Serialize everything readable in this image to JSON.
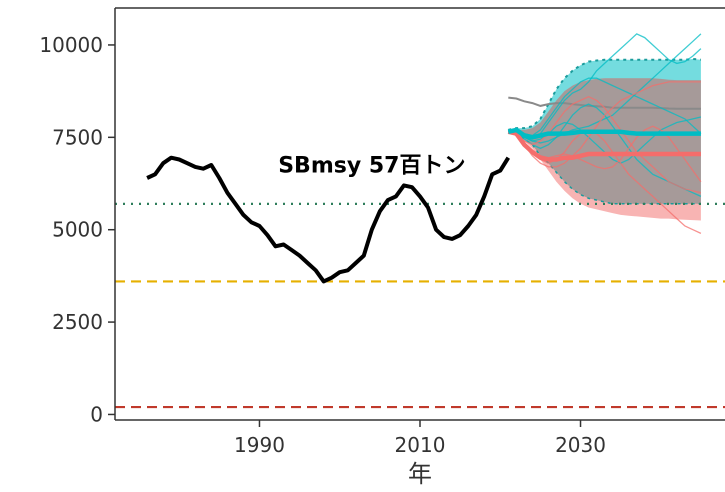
{
  "chart_data": {
    "type": "line",
    "title": "",
    "xlabel": "年",
    "ylabel": "",
    "xlim": [
      1972,
      2048
    ],
    "ylim": [
      -150,
      11000
    ],
    "xticks": [
      1990,
      2010,
      2030
    ],
    "yticks": [
      0,
      2500,
      5000,
      7500,
      10000
    ],
    "grid": false,
    "legend": "none",
    "annotation": {
      "text": "SBmsy 57百トン",
      "x": 2004,
      "y": 6550
    },
    "reference_lines": [
      {
        "value": 5700,
        "style": "dotted",
        "color": "#2e7d5b"
      },
      {
        "value": 3600,
        "style": "dashed",
        "color": "#e6b000"
      },
      {
        "value": 200,
        "style": "dashed",
        "color": "#c0392b"
      }
    ],
    "history": {
      "color": "#000000",
      "x": [
        1976,
        1977,
        1978,
        1979,
        1980,
        1981,
        1982,
        1983,
        1984,
        1985,
        1986,
        1987,
        1988,
        1989,
        1990,
        1991,
        1992,
        1993,
        1994,
        1995,
        1996,
        1997,
        1998,
        1999,
        2000,
        2001,
        2002,
        2003,
        2004,
        2005,
        2006,
        2007,
        2008,
        2009,
        2010,
        2011,
        2012,
        2013,
        2014,
        2015,
        2016,
        2017,
        2018,
        2019,
        2020,
        2021
      ],
      "y": [
        6400,
        6500,
        6800,
        6950,
        6900,
        6800,
        6700,
        6650,
        6750,
        6400,
        6000,
        5700,
        5400,
        5200,
        5100,
        4850,
        4550,
        4600,
        4450,
        4300,
        4100,
        3900,
        3600,
        3700,
        3850,
        3900,
        4100,
        4300,
        5000,
        5500,
        5800,
        5900,
        6200,
        6150,
        5900,
        5600,
        5000,
        4800,
        4750,
        4850,
        5100,
        5400,
        5900,
        6500,
        6600,
        6950
      ]
    },
    "projection_x": [
      2021,
      2022,
      2023,
      2024,
      2025,
      2026,
      2027,
      2028,
      2029,
      2030,
      2031,
      2032,
      2033,
      2034,
      2035,
      2036,
      2037,
      2038,
      2039,
      2040,
      2041,
      2042,
      2043,
      2044,
      2045
    ],
    "series": [
      {
        "color": "#00bcc4",
        "fill": "#45d0d4",
        "lower": [
          7650,
          7600,
          7450,
          7300,
          7000,
          6800,
          6550,
          6300,
          6100,
          5950,
          5850,
          5800,
          5750,
          5700,
          5700,
          5700,
          5700,
          5700,
          5700,
          5700,
          5700,
          5700,
          5700,
          5700,
          5700
        ],
        "upper": [
          7700,
          7750,
          7750,
          7800,
          8000,
          8400,
          8800,
          9100,
          9300,
          9450,
          9550,
          9580,
          9600,
          9600,
          9600,
          9600,
          9600,
          9600,
          9600,
          9600,
          9600,
          9600,
          9600,
          9620,
          9600
        ],
        "median": [
          7650,
          7700,
          7550,
          7500,
          7550,
          7600,
          7600,
          7600,
          7620,
          7650,
          7650,
          7650,
          7650,
          7650,
          7650,
          7620,
          7600,
          7600,
          7600,
          7600,
          7600,
          7600,
          7600,
          7600,
          7600
        ],
        "traces": [
          [
            7650,
            7650,
            7500,
            7450,
            7600,
            7900,
            8200,
            8500,
            8700,
            8800,
            9000,
            9300,
            9500,
            9700,
            9900,
            10100,
            10300,
            10200,
            10000,
            9800,
            9600,
            9500,
            9550,
            9700,
            9900
          ],
          [
            7650,
            7600,
            7450,
            7300,
            7200,
            7300,
            7500,
            7800,
            8100,
            8300,
            8400,
            8300,
            8100,
            7800,
            7500,
            7200,
            6900,
            6700,
            6500,
            6400,
            6300,
            6200,
            6100,
            6000,
            5900
          ],
          [
            7650,
            7650,
            7500,
            7400,
            7450,
            7600,
            7800,
            7900,
            7850,
            7700,
            7500,
            7300,
            7100,
            6900,
            6800,
            6900,
            7100,
            7300,
            7500,
            7700,
            7800,
            7900,
            7950,
            8000,
            8050
          ],
          [
            7650,
            7700,
            7600,
            7550,
            7700,
            8000,
            8300,
            8600,
            8800,
            9000,
            9100,
            9100,
            9000,
            8900,
            8800,
            8700,
            8600,
            8500,
            8400,
            8300,
            8200,
            8100,
            8000,
            7800,
            7600
          ],
          [
            7650,
            7600,
            7500,
            7400,
            7350,
            7400,
            7500,
            7600,
            7700,
            7750,
            7800,
            7900,
            8000,
            8100,
            8300,
            8500,
            8700,
            8900,
            9100,
            9300,
            9500,
            9700,
            9900,
            10100,
            10300
          ]
        ]
      },
      {
        "color": "#f46d6b",
        "fill": "#f59b99",
        "lower": [
          7650,
          7550,
          7400,
          7200,
          6900,
          6600,
          6300,
          6050,
          5850,
          5700,
          5600,
          5550,
          5500,
          5450,
          5400,
          5380,
          5360,
          5340,
          5320,
          5300,
          5300,
          5280,
          5270,
          5260,
          5250
        ],
        "upper": [
          7700,
          7700,
          7700,
          7750,
          7900,
          8200,
          8500,
          8750,
          8900,
          9000,
          9050,
          9080,
          9100,
          9100,
          9100,
          9100,
          9100,
          9100,
          9100,
          9080,
          9060,
          9050,
          9050,
          9050,
          9050
        ],
        "median": [
          7650,
          7600,
          7300,
          7100,
          6950,
          6900,
          6900,
          6950,
          6950,
          7000,
          7050,
          7050,
          7050,
          7050,
          7050,
          7050,
          7050,
          7050,
          7050,
          7050,
          7050,
          7050,
          7050,
          7050,
          7050
        ],
        "traces": [
          [
            7650,
            7600,
            7350,
            7100,
            6900,
            6800,
            6900,
            7100,
            7400,
            7600,
            7700,
            7600,
            7400,
            7100,
            6800,
            6500,
            6300,
            6100,
            5900,
            5700,
            5500,
            5300,
            5100,
            5000,
            4900
          ],
          [
            7650,
            7600,
            7400,
            7300,
            7400,
            7600,
            7900,
            8200,
            8400,
            8500,
            8600,
            8500,
            8300,
            8000,
            7700,
            7400,
            7100,
            6900,
            6700,
            6500,
            6300,
            6200,
            6100,
            6050,
            6000
          ],
          [
            7650,
            7550,
            7300,
            7000,
            6800,
            6700,
            6700,
            6800,
            7000,
            7200,
            7500,
            7800,
            8100,
            8300,
            8500,
            8600,
            8700,
            8800,
            8900,
            8950,
            9000,
            9000,
            9000,
            9000,
            9000
          ],
          [
            7650,
            7600,
            7350,
            7150,
            7000,
            6950,
            7000,
            7050,
            7000,
            6900,
            6800,
            6700,
            6650,
            6700,
            6900,
            7200,
            7500,
            7700,
            7800,
            7700,
            7500,
            7200,
            6900,
            6600,
            6300
          ]
        ]
      }
    ],
    "overlap": {
      "fill": "#7f8c8a",
      "opacity": 0.55,
      "median_color": "#8a8a8a"
    }
  }
}
